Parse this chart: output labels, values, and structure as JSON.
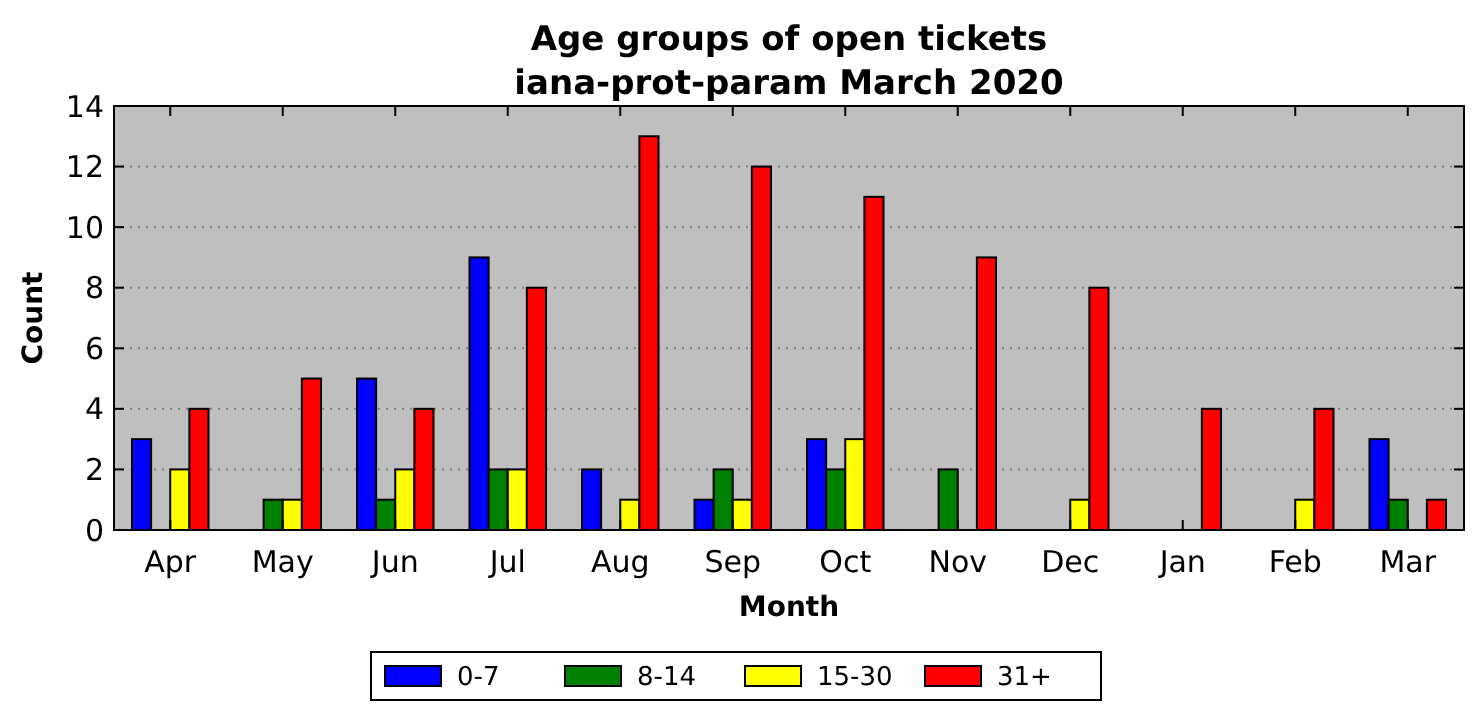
{
  "chart_data": {
    "type": "bar",
    "title": "Age groups of open tickets\niana-prot-param March 2020",
    "xlabel": "Month",
    "ylabel": "Count",
    "categories": [
      "Apr",
      "May",
      "Jun",
      "Jul",
      "Aug",
      "Sep",
      "Oct",
      "Nov",
      "Dec",
      "Jan",
      "Feb",
      "Mar"
    ],
    "series": [
      {
        "name": "0-7",
        "color": "#0000ff",
        "values": [
          3,
          0,
          5,
          9,
          2,
          1,
          3,
          0,
          0,
          0,
          0,
          3
        ]
      },
      {
        "name": "8-14",
        "color": "#008000",
        "values": [
          0,
          1,
          1,
          2,
          0,
          2,
          2,
          2,
          0,
          0,
          0,
          1
        ]
      },
      {
        "name": "15-30",
        "color": "#ffff00",
        "values": [
          2,
          1,
          2,
          2,
          1,
          1,
          3,
          0,
          1,
          0,
          1,
          0
        ]
      },
      {
        "name": "31+",
        "color": "#ff0000",
        "values": [
          4,
          5,
          4,
          8,
          13,
          12,
          11,
          9,
          8,
          4,
          4,
          1
        ]
      }
    ],
    "ylim": [
      0,
      14
    ],
    "yticks": [
      0,
      2,
      4,
      6,
      8,
      10,
      12,
      14
    ],
    "grid": "y",
    "legend": "bottom"
  }
}
